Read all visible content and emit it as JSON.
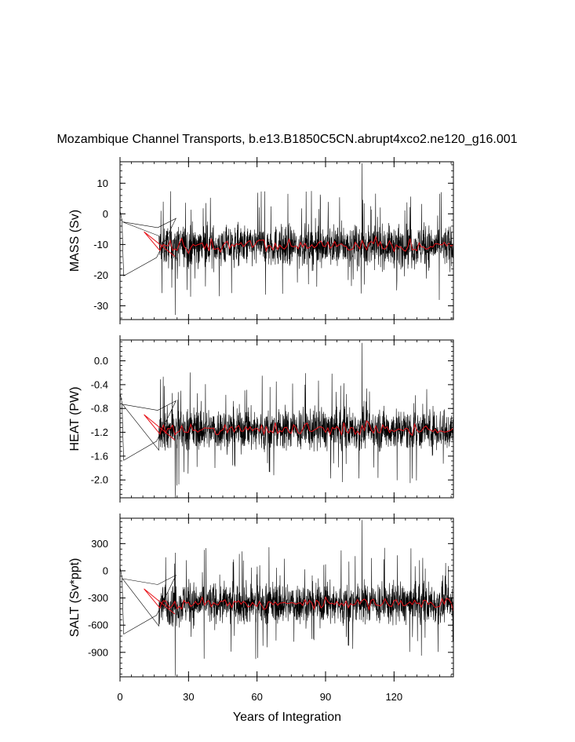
{
  "chart_data": [
    {
      "type": "line",
      "title": "Mozambique Channel Transports, b.e13.B1850C5CN.abrupt4xco2.ne120_g16.001",
      "xlabel": "Years of Integration",
      "xlim": [
        0,
        146
      ],
      "xticks": [
        0,
        30,
        60,
        90,
        120
      ],
      "xtick_labels": [
        "0",
        "30",
        "60",
        "90",
        "120"
      ],
      "panels": [
        {
          "key": "mass",
          "ylabel": "MASS (Sv)",
          "ylim": [
            -34.5,
            17
          ],
          "yticks": [
            10,
            0,
            -10,
            -20,
            -30
          ],
          "ytick_labels": [
            "10",
            "0",
            "-10",
            "-20",
            "-30"
          ],
          "mean": -10.5,
          "monthly_amplitude": 7.5,
          "spikes": [
            -33,
            16.5
          ],
          "series": [
            {
              "name": "",
              "color": "#000000",
              "resolution": "monthly"
            },
            {
              "name": "",
              "color": "#e8141b",
              "resolution": "annual"
            }
          ]
        },
        {
          "key": "heat",
          "ylabel": "HEAT (PW)",
          "ylim": [
            -2.3,
            0.35
          ],
          "yticks": [
            0.0,
            -0.4,
            -0.8,
            -1.2,
            -1.6,
            -2.0
          ],
          "ytick_labels": [
            "0.0",
            "-0.4",
            "-0.8",
            "-1.2",
            "-1.6",
            "-2.0"
          ],
          "mean": -1.15,
          "monthly_amplitude": 0.4,
          "spikes": [
            -2.3,
            0.3
          ],
          "series": [
            {
              "name": "",
              "color": "#000000",
              "resolution": "monthly"
            },
            {
              "name": "",
              "color": "#e8141b",
              "resolution": "annual"
            }
          ]
        },
        {
          "key": "salt",
          "ylabel": "SALT (Sv*ppt)",
          "ylim": [
            -1170,
            580
          ],
          "yticks": [
            300,
            0,
            -300,
            -600,
            -900
          ],
          "ytick_labels": [
            "300",
            "0",
            "-300",
            "-600",
            "-900"
          ],
          "mean": -360,
          "monthly_amplitude": 260,
          "spikes": [
            -1160,
            560
          ],
          "series": [
            {
              "name": "",
              "color": "#000000",
              "resolution": "monthly"
            },
            {
              "name": "",
              "color": "#e8141b",
              "resolution": "annual"
            }
          ]
        }
      ]
    }
  ]
}
